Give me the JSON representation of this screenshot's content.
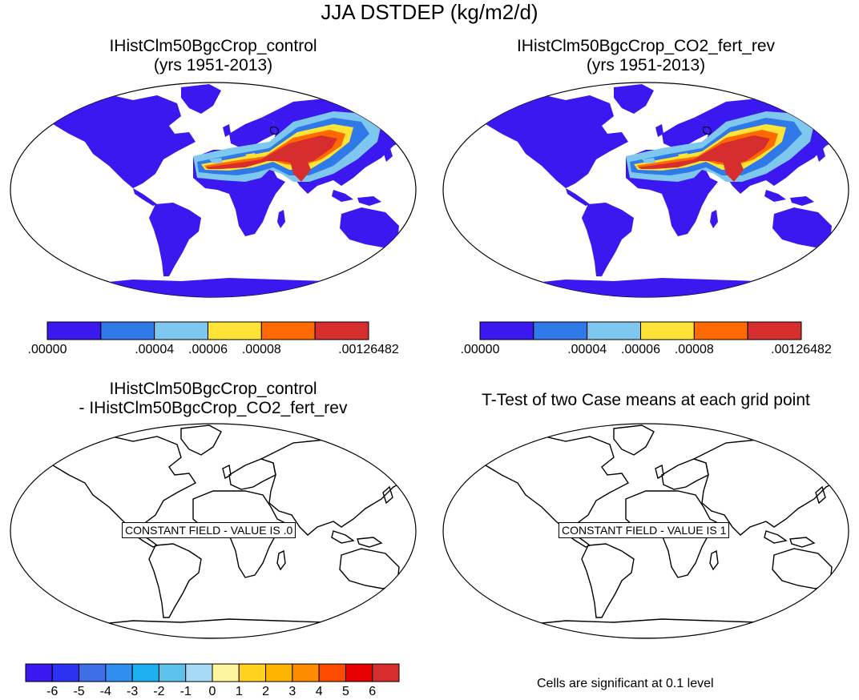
{
  "main_title": "JJA DSTDEP (kg/m2/d)",
  "panels": [
    {
      "title_line1": "IHistClm50BgcCrop_control",
      "title_line2": "(yrs 1951-2013)"
    },
    {
      "title_line1": "IHistClm50BgcCrop_CO2_fert_rev",
      "title_line2": "(yrs 1951-2013)"
    },
    {
      "title_line1": "IHistClm50BgcCrop_control",
      "title_line2": "- IHistClm50BgcCrop_CO2_fert_rev"
    },
    {
      "title_line1": "T-Test of two Case means at each grid point",
      "title_line2": ""
    }
  ],
  "constant_field_labels": {
    "difference": "CONSTANT FIELD - VALUE IS .0",
    "ttest": "CONSTANT FIELD - VALUE IS 1"
  },
  "colorbar_top": {
    "colors": [
      "#3b17f0",
      "#2f7ae8",
      "#7ec8f0",
      "#ffe336",
      "#fe6a00",
      "#d62e2e"
    ],
    "tick_labels": [
      ".00000",
      ".00004",
      ".00006",
      ".00008",
      ".00126482"
    ]
  },
  "colorbar_diff": {
    "colors": [
      "#3b17f0",
      "#2c32f0",
      "#3f6fe6",
      "#2f8ef0",
      "#1fb0f2",
      "#5fc2ee",
      "#a6daf5",
      "#fff5a0",
      "#ffd21e",
      "#ffb400",
      "#ff8c00",
      "#ff4b00",
      "#e60000",
      "#d62e2e"
    ],
    "tick_labels": [
      "-6",
      "-5",
      "-4",
      "-3",
      "-2",
      "-1",
      "0",
      "1",
      "2",
      "3",
      "4",
      "5",
      "6"
    ]
  },
  "significance_note": "Cells are significant at 0.1 level",
  "colors": {
    "ocean": "#ffffff",
    "land_low": "#3b17f0",
    "outline": "#000000"
  }
}
